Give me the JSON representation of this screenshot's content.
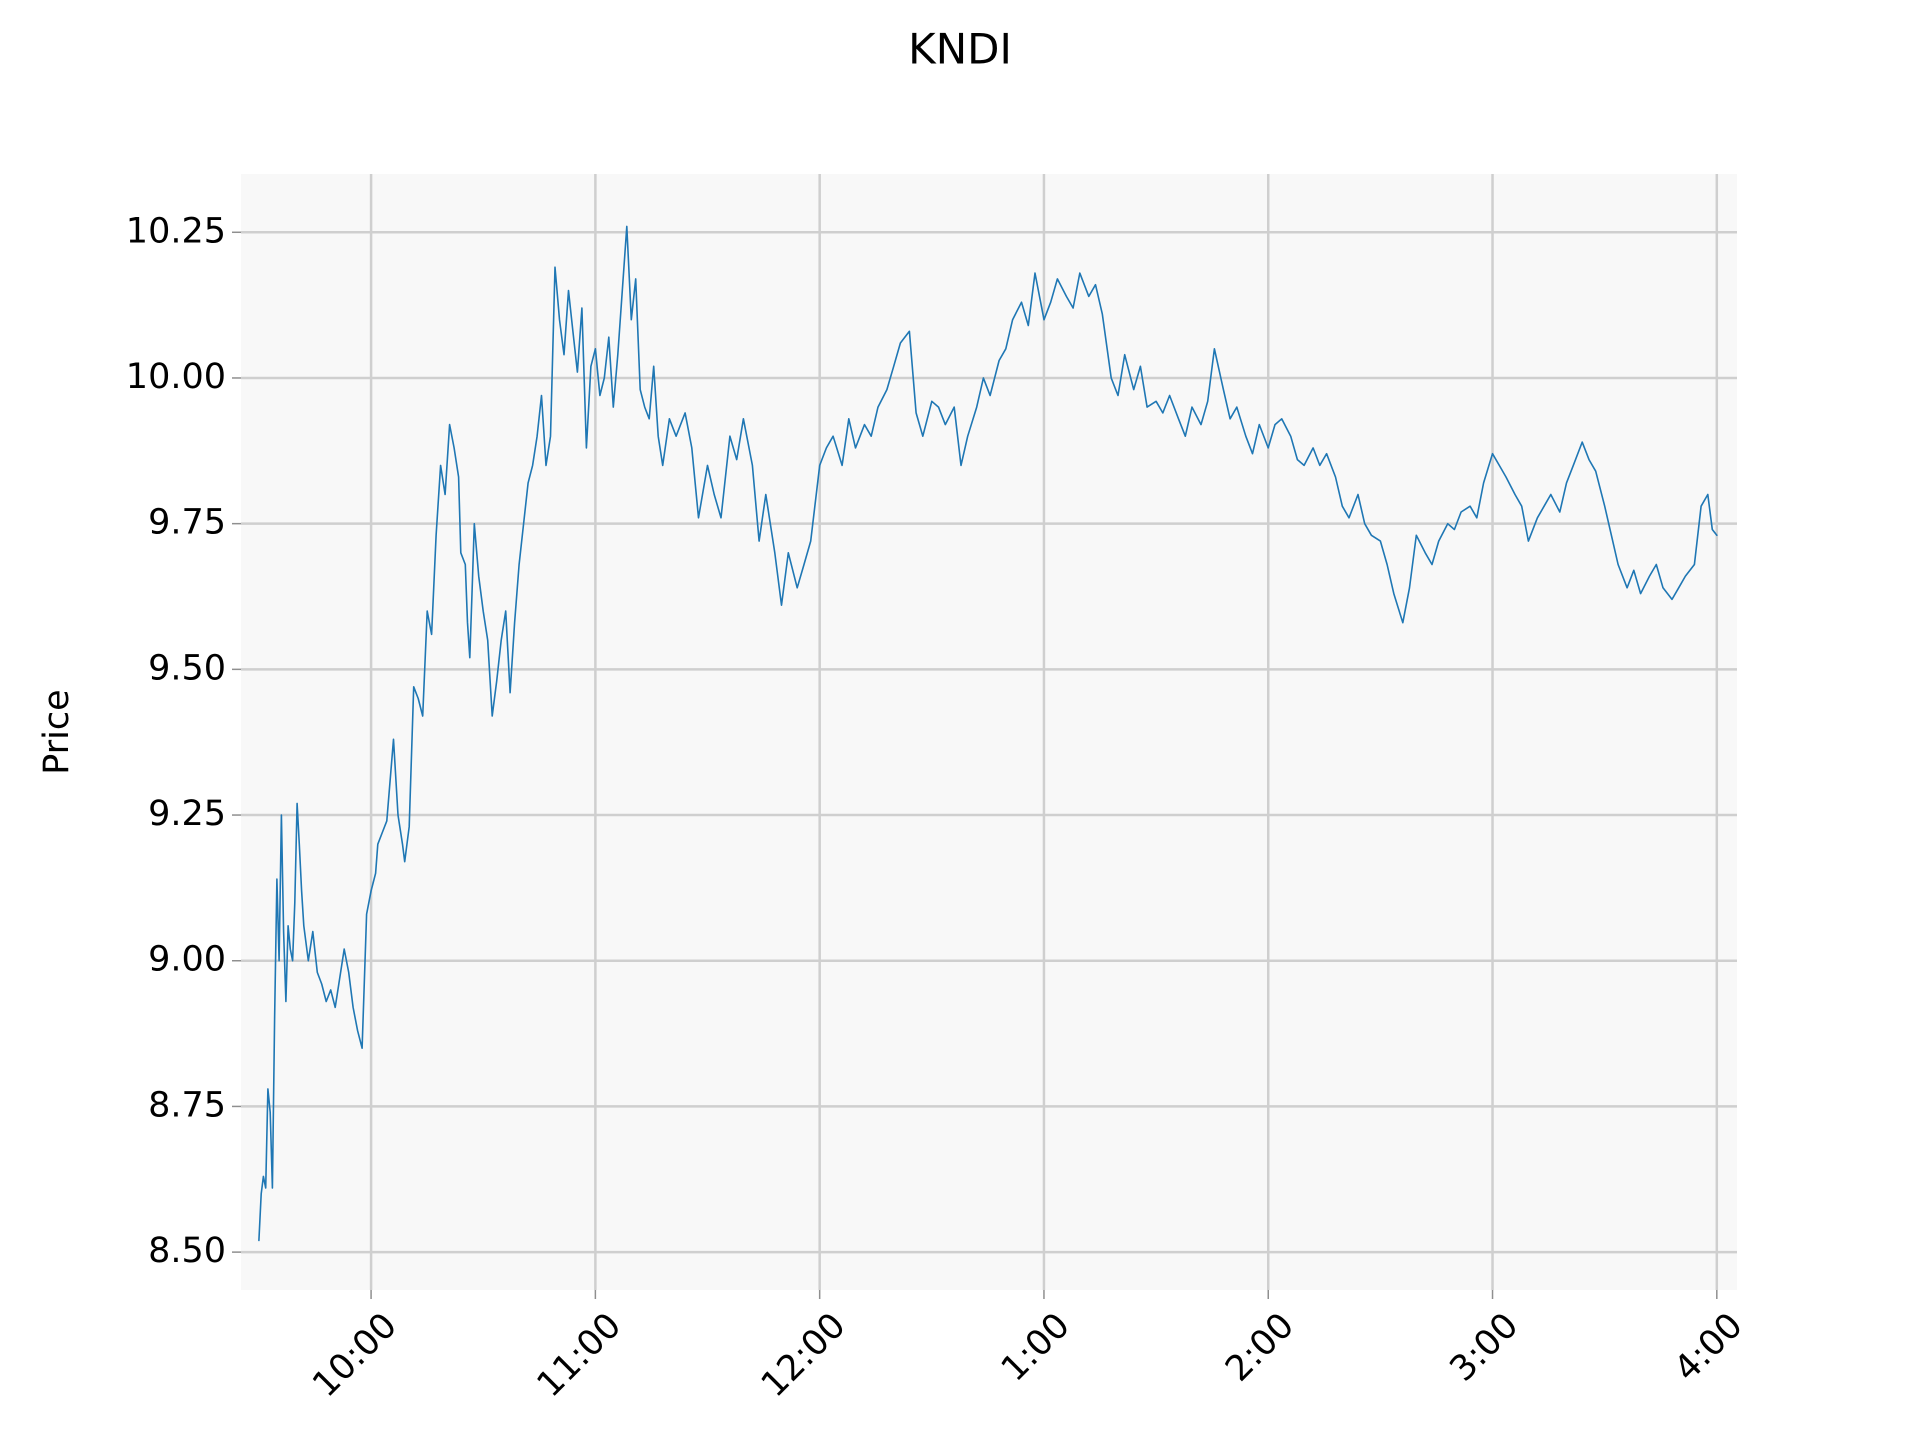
{
  "chart_data": {
    "type": "line",
    "title": "KNDI",
    "xlabel": "",
    "ylabel": "Price",
    "x_unit": "time of day (hours, 24h)",
    "xlim": [
      9.42,
      16.09
    ],
    "ylim": [
      8.435,
      10.35
    ],
    "x_ticks": [
      {
        "value": 10,
        "label": "10:00"
      },
      {
        "value": 11,
        "label": "11:00"
      },
      {
        "value": 12,
        "label": "12:00"
      },
      {
        "value": 13,
        "label": "1:00"
      },
      {
        "value": 14,
        "label": "2:00"
      },
      {
        "value": 15,
        "label": "3:00"
      },
      {
        "value": 16,
        "label": "4:00"
      }
    ],
    "y_ticks": [
      {
        "value": 8.5,
        "label": "8.50"
      },
      {
        "value": 8.75,
        "label": "8.75"
      },
      {
        "value": 9.0,
        "label": "9.00"
      },
      {
        "value": 9.25,
        "label": "9.25"
      },
      {
        "value": 9.5,
        "label": "9.50"
      },
      {
        "value": 9.75,
        "label": "9.75"
      },
      {
        "value": 10.0,
        "label": "10.00"
      },
      {
        "value": 10.25,
        "label": "10.25"
      }
    ],
    "grid": true,
    "legend": "none",
    "colors": {
      "line": "#1f77b4",
      "plot_background": "#f8f8f8",
      "grid": "#cfcfcf"
    },
    "series": [
      {
        "x": [
          9.5,
          9.51,
          9.52,
          9.53,
          9.54,
          9.55,
          9.56,
          9.57,
          9.58,
          9.59,
          9.6,
          9.61,
          9.62,
          9.63,
          9.64,
          9.65,
          9.66,
          9.67,
          9.68,
          9.69,
          9.7,
          9.72,
          9.74,
          9.76,
          9.78,
          9.8,
          9.82,
          9.84,
          9.86,
          9.88,
          9.9,
          9.92,
          9.94,
          9.96,
          9.98,
          10.0,
          10.02,
          10.03,
          10.05,
          10.07,
          10.1,
          10.12,
          10.14,
          10.15,
          10.17,
          10.19,
          10.21,
          10.23,
          10.25,
          10.27,
          10.29,
          10.31,
          10.33,
          10.35,
          10.37,
          10.39,
          10.4,
          10.42,
          10.43,
          10.44,
          10.45,
          10.46,
          10.48,
          10.5,
          10.52,
          10.54,
          10.56,
          10.58,
          10.6,
          10.62,
          10.64,
          10.66,
          10.68,
          10.7,
          10.72,
          10.74,
          10.76,
          10.78,
          10.8,
          10.82,
          10.84,
          10.86,
          10.88,
          10.9,
          10.92,
          10.94,
          10.96,
          10.98,
          11.0,
          11.02,
          11.04,
          11.06,
          11.08,
          11.1,
          11.12,
          11.14,
          11.16,
          11.18,
          11.2,
          11.22,
          11.24,
          11.26,
          11.28,
          11.3,
          11.33,
          11.36,
          11.4,
          11.43,
          11.46,
          11.5,
          11.53,
          11.56,
          11.6,
          11.63,
          11.66,
          11.7,
          11.73,
          11.76,
          11.8,
          11.83,
          11.86,
          11.9,
          11.93,
          11.96,
          12.0,
          12.03,
          12.06,
          12.1,
          12.13,
          12.16,
          12.2,
          12.23,
          12.26,
          12.3,
          12.33,
          12.36,
          12.4,
          12.43,
          12.46,
          12.5,
          12.53,
          12.56,
          12.6,
          12.63,
          12.66,
          12.7,
          12.73,
          12.76,
          12.8,
          12.83,
          12.86,
          12.9,
          12.93,
          12.96,
          13.0,
          13.03,
          13.06,
          13.1,
          13.13,
          13.16,
          13.2,
          13.23,
          13.26,
          13.3,
          13.33,
          13.36,
          13.4,
          13.43,
          13.46,
          13.5,
          13.53,
          13.56,
          13.6,
          13.63,
          13.66,
          13.7,
          13.73,
          13.76,
          13.8,
          13.83,
          13.86,
          13.9,
          13.93,
          13.96,
          14.0,
          14.03,
          14.06,
          14.1,
          14.13,
          14.16,
          14.2,
          14.23,
          14.26,
          14.3,
          14.33,
          14.36,
          14.4,
          14.43,
          14.46,
          14.5,
          14.53,
          14.56,
          14.6,
          14.63,
          14.66,
          14.7,
          14.73,
          14.76,
          14.8,
          14.83,
          14.86,
          14.9,
          14.93,
          14.96,
          15.0,
          15.03,
          15.06,
          15.1,
          15.13,
          15.16,
          15.2,
          15.23,
          15.26,
          15.3,
          15.33,
          15.36,
          15.4,
          15.43,
          15.46,
          15.5,
          15.53,
          15.56,
          15.6,
          15.63,
          15.66,
          15.7,
          15.73,
          15.76,
          15.8,
          15.83,
          15.86,
          15.9,
          15.93,
          15.96,
          15.98,
          16.0
        ],
        "y": [
          8.52,
          8.6,
          8.63,
          8.61,
          8.78,
          8.74,
          8.61,
          8.9,
          9.14,
          9.0,
          9.25,
          9.05,
          8.93,
          9.06,
          9.02,
          9.0,
          9.1,
          9.27,
          9.2,
          9.12,
          9.06,
          9.0,
          9.05,
          8.98,
          8.96,
          8.93,
          8.95,
          8.92,
          8.97,
          9.02,
          8.98,
          8.92,
          8.88,
          8.85,
          9.08,
          9.12,
          9.15,
          9.2,
          9.22,
          9.24,
          9.38,
          9.25,
          9.2,
          9.17,
          9.23,
          9.47,
          9.45,
          9.42,
          9.6,
          9.56,
          9.73,
          9.85,
          9.8,
          9.92,
          9.88,
          9.83,
          9.7,
          9.68,
          9.58,
          9.52,
          9.63,
          9.75,
          9.66,
          9.6,
          9.55,
          9.42,
          9.48,
          9.55,
          9.6,
          9.46,
          9.58,
          9.68,
          9.75,
          9.82,
          9.85,
          9.9,
          9.97,
          9.85,
          9.9,
          10.19,
          10.1,
          10.04,
          10.15,
          10.08,
          10.01,
          10.12,
          9.88,
          10.02,
          10.05,
          9.97,
          10.0,
          10.07,
          9.95,
          10.04,
          10.15,
          10.26,
          10.1,
          10.17,
          9.98,
          9.95,
          9.93,
          10.02,
          9.9,
          9.85,
          9.93,
          9.9,
          9.94,
          9.88,
          9.76,
          9.85,
          9.8,
          9.76,
          9.9,
          9.86,
          9.93,
          9.85,
          9.72,
          9.8,
          9.7,
          9.61,
          9.7,
          9.64,
          9.68,
          9.72,
          9.85,
          9.88,
          9.9,
          9.85,
          9.93,
          9.88,
          9.92,
          9.9,
          9.95,
          9.98,
          10.02,
          10.06,
          10.08,
          9.94,
          9.9,
          9.96,
          9.95,
          9.92,
          9.95,
          9.85,
          9.9,
          9.95,
          10.0,
          9.97,
          10.03,
          10.05,
          10.1,
          10.13,
          10.09,
          10.18,
          10.1,
          10.13,
          10.17,
          10.14,
          10.12,
          10.18,
          10.14,
          10.16,
          10.11,
          10.0,
          9.97,
          10.04,
          9.98,
          10.02,
          9.95,
          9.96,
          9.94,
          9.97,
          9.93,
          9.9,
          9.95,
          9.92,
          9.96,
          10.05,
          9.98,
          9.93,
          9.95,
          9.9,
          9.87,
          9.92,
          9.88,
          9.92,
          9.93,
          9.9,
          9.86,
          9.85,
          9.88,
          9.85,
          9.87,
          9.83,
          9.78,
          9.76,
          9.8,
          9.75,
          9.73,
          9.72,
          9.68,
          9.63,
          9.58,
          9.64,
          9.73,
          9.7,
          9.68,
          9.72,
          9.75,
          9.74,
          9.77,
          9.78,
          9.76,
          9.82,
          9.87,
          9.85,
          9.83,
          9.8,
          9.78,
          9.72,
          9.76,
          9.78,
          9.8,
          9.77,
          9.82,
          9.85,
          9.89,
          9.86,
          9.84,
          9.78,
          9.73,
          9.68,
          9.64,
          9.67,
          9.63,
          9.66,
          9.68,
          9.64,
          9.62,
          9.64,
          9.66,
          9.68,
          9.78,
          9.8,
          9.74,
          9.73
        ]
      }
    ]
  }
}
